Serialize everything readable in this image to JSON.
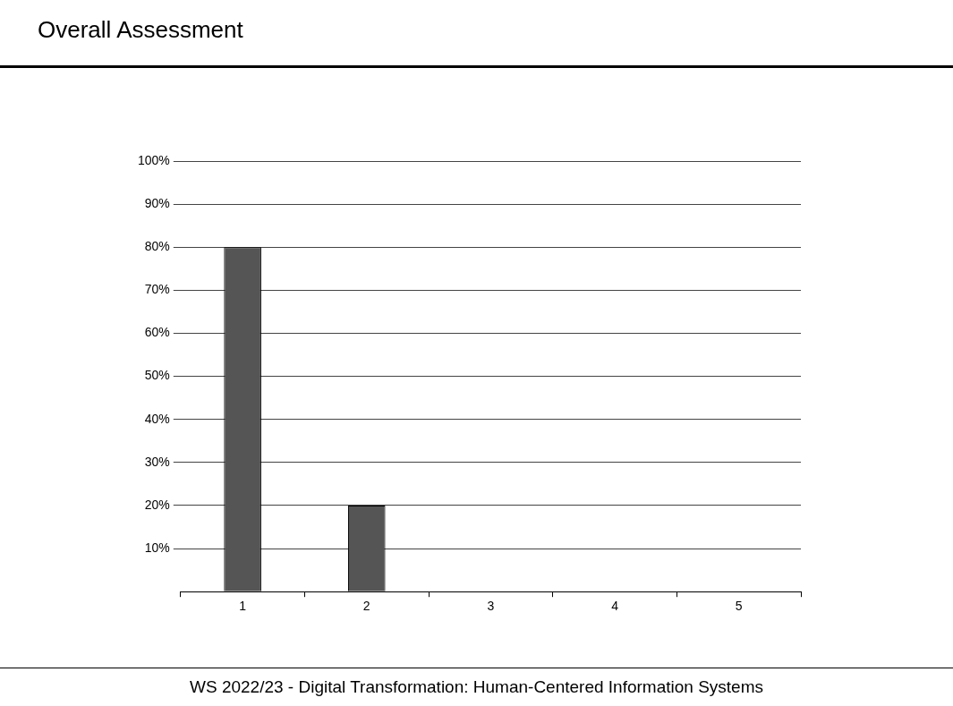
{
  "chart_data": {
    "type": "bar",
    "title": "Overall Assessment",
    "categories": [
      "1",
      "2",
      "3",
      "4",
      "5"
    ],
    "values": [
      80,
      20,
      0,
      0,
      0
    ],
    "color": "#555555",
    "ylim": [
      0,
      100
    ],
    "yticks": [
      {
        "value": 0,
        "label": null
      },
      {
        "value": 10,
        "label": "10%"
      },
      {
        "value": 20,
        "label": "20%"
      },
      {
        "value": 30,
        "label": "30%"
      },
      {
        "value": 40,
        "label": "40%"
      },
      {
        "value": 50,
        "label": "50%"
      },
      {
        "value": 60,
        "label": "60%"
      },
      {
        "value": 70,
        "label": "70%"
      },
      {
        "value": 80,
        "label": "80%"
      },
      {
        "value": 90,
        "label": "90%"
      },
      {
        "value": 100,
        "label": "100%"
      }
    ],
    "grid": "y",
    "annotations": [
      "WS 2022/23 - Digital Transformation: Human-Centered Information Systems"
    ]
  }
}
